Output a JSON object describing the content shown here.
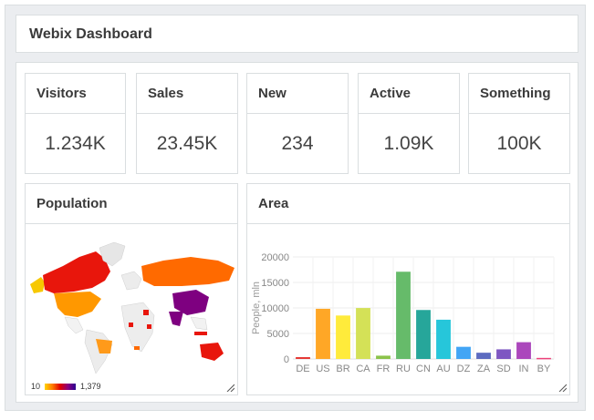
{
  "app": {
    "title": "Webix Dashboard"
  },
  "stats": [
    {
      "label": "Visitors",
      "value": "1.234K"
    },
    {
      "label": "Sales",
      "value": "23.45K"
    },
    {
      "label": "New",
      "value": "234"
    },
    {
      "label": "Active",
      "value": "1.09K"
    },
    {
      "label": "Something",
      "value": "100K"
    }
  ],
  "population": {
    "title": "Population",
    "legend_min": "10",
    "legend_max": "1,379",
    "legend_colors": [
      "#ffd400",
      "#ff7a00",
      "#e00000",
      "#8a0080",
      "#2a0090"
    ]
  },
  "area": {
    "title": "Area"
  },
  "chart_data": {
    "type": "bar",
    "categories": [
      "DE",
      "US",
      "BR",
      "CA",
      "FR",
      "RU",
      "CN",
      "AU",
      "DZ",
      "ZA",
      "SD",
      "IN",
      "BY"
    ],
    "values": [
      357,
      9834,
      8516,
      9985,
      644,
      17098,
      9597,
      7692,
      2382,
      1221,
      1886,
      3287,
      208
    ],
    "colors": [
      "#e53935",
      "#ffa726",
      "#ffeb3b",
      "#d4e157",
      "#8bc34a",
      "#66bb6a",
      "#26a69a",
      "#26c6da",
      "#42a5f5",
      "#5c6bc0",
      "#7e57c2",
      "#ab47bc",
      "#ec407a"
    ],
    "ylabel": "People, mln",
    "ylim": [
      0,
      20000
    ],
    "yticks": [
      0,
      5000,
      10000,
      15000,
      20000
    ],
    "grid": true
  }
}
